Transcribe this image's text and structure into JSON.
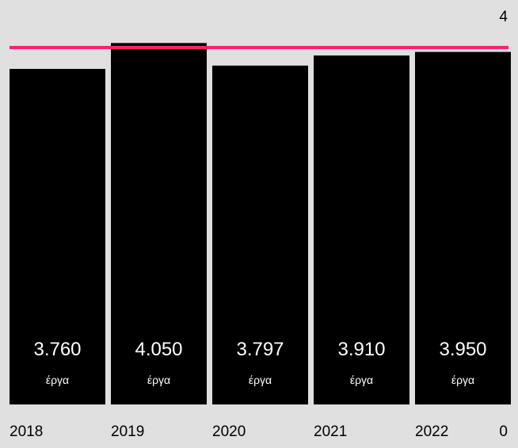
{
  "chart_data": {
    "type": "bar",
    "categories": [
      "2018",
      "2019",
      "2020",
      "2021",
      "2022"
    ],
    "values": [
      3.76,
      4.05,
      3.797,
      3.91,
      3.95
    ],
    "value_labels": [
      "3.760",
      "4.050",
      "3.797",
      "3.910",
      "3.950"
    ],
    "unit_label": "έργα",
    "ylim": [
      0,
      4
    ],
    "y_tick_labels": {
      "min": "0",
      "max": "4"
    },
    "reference_line": {
      "value": 4,
      "color": "#ff1f6e"
    },
    "grid": false,
    "colors": {
      "bar": "#000000",
      "background": "#e0e0e0",
      "text_on_bar": "#ffffff",
      "axis_text": "#000000"
    }
  }
}
